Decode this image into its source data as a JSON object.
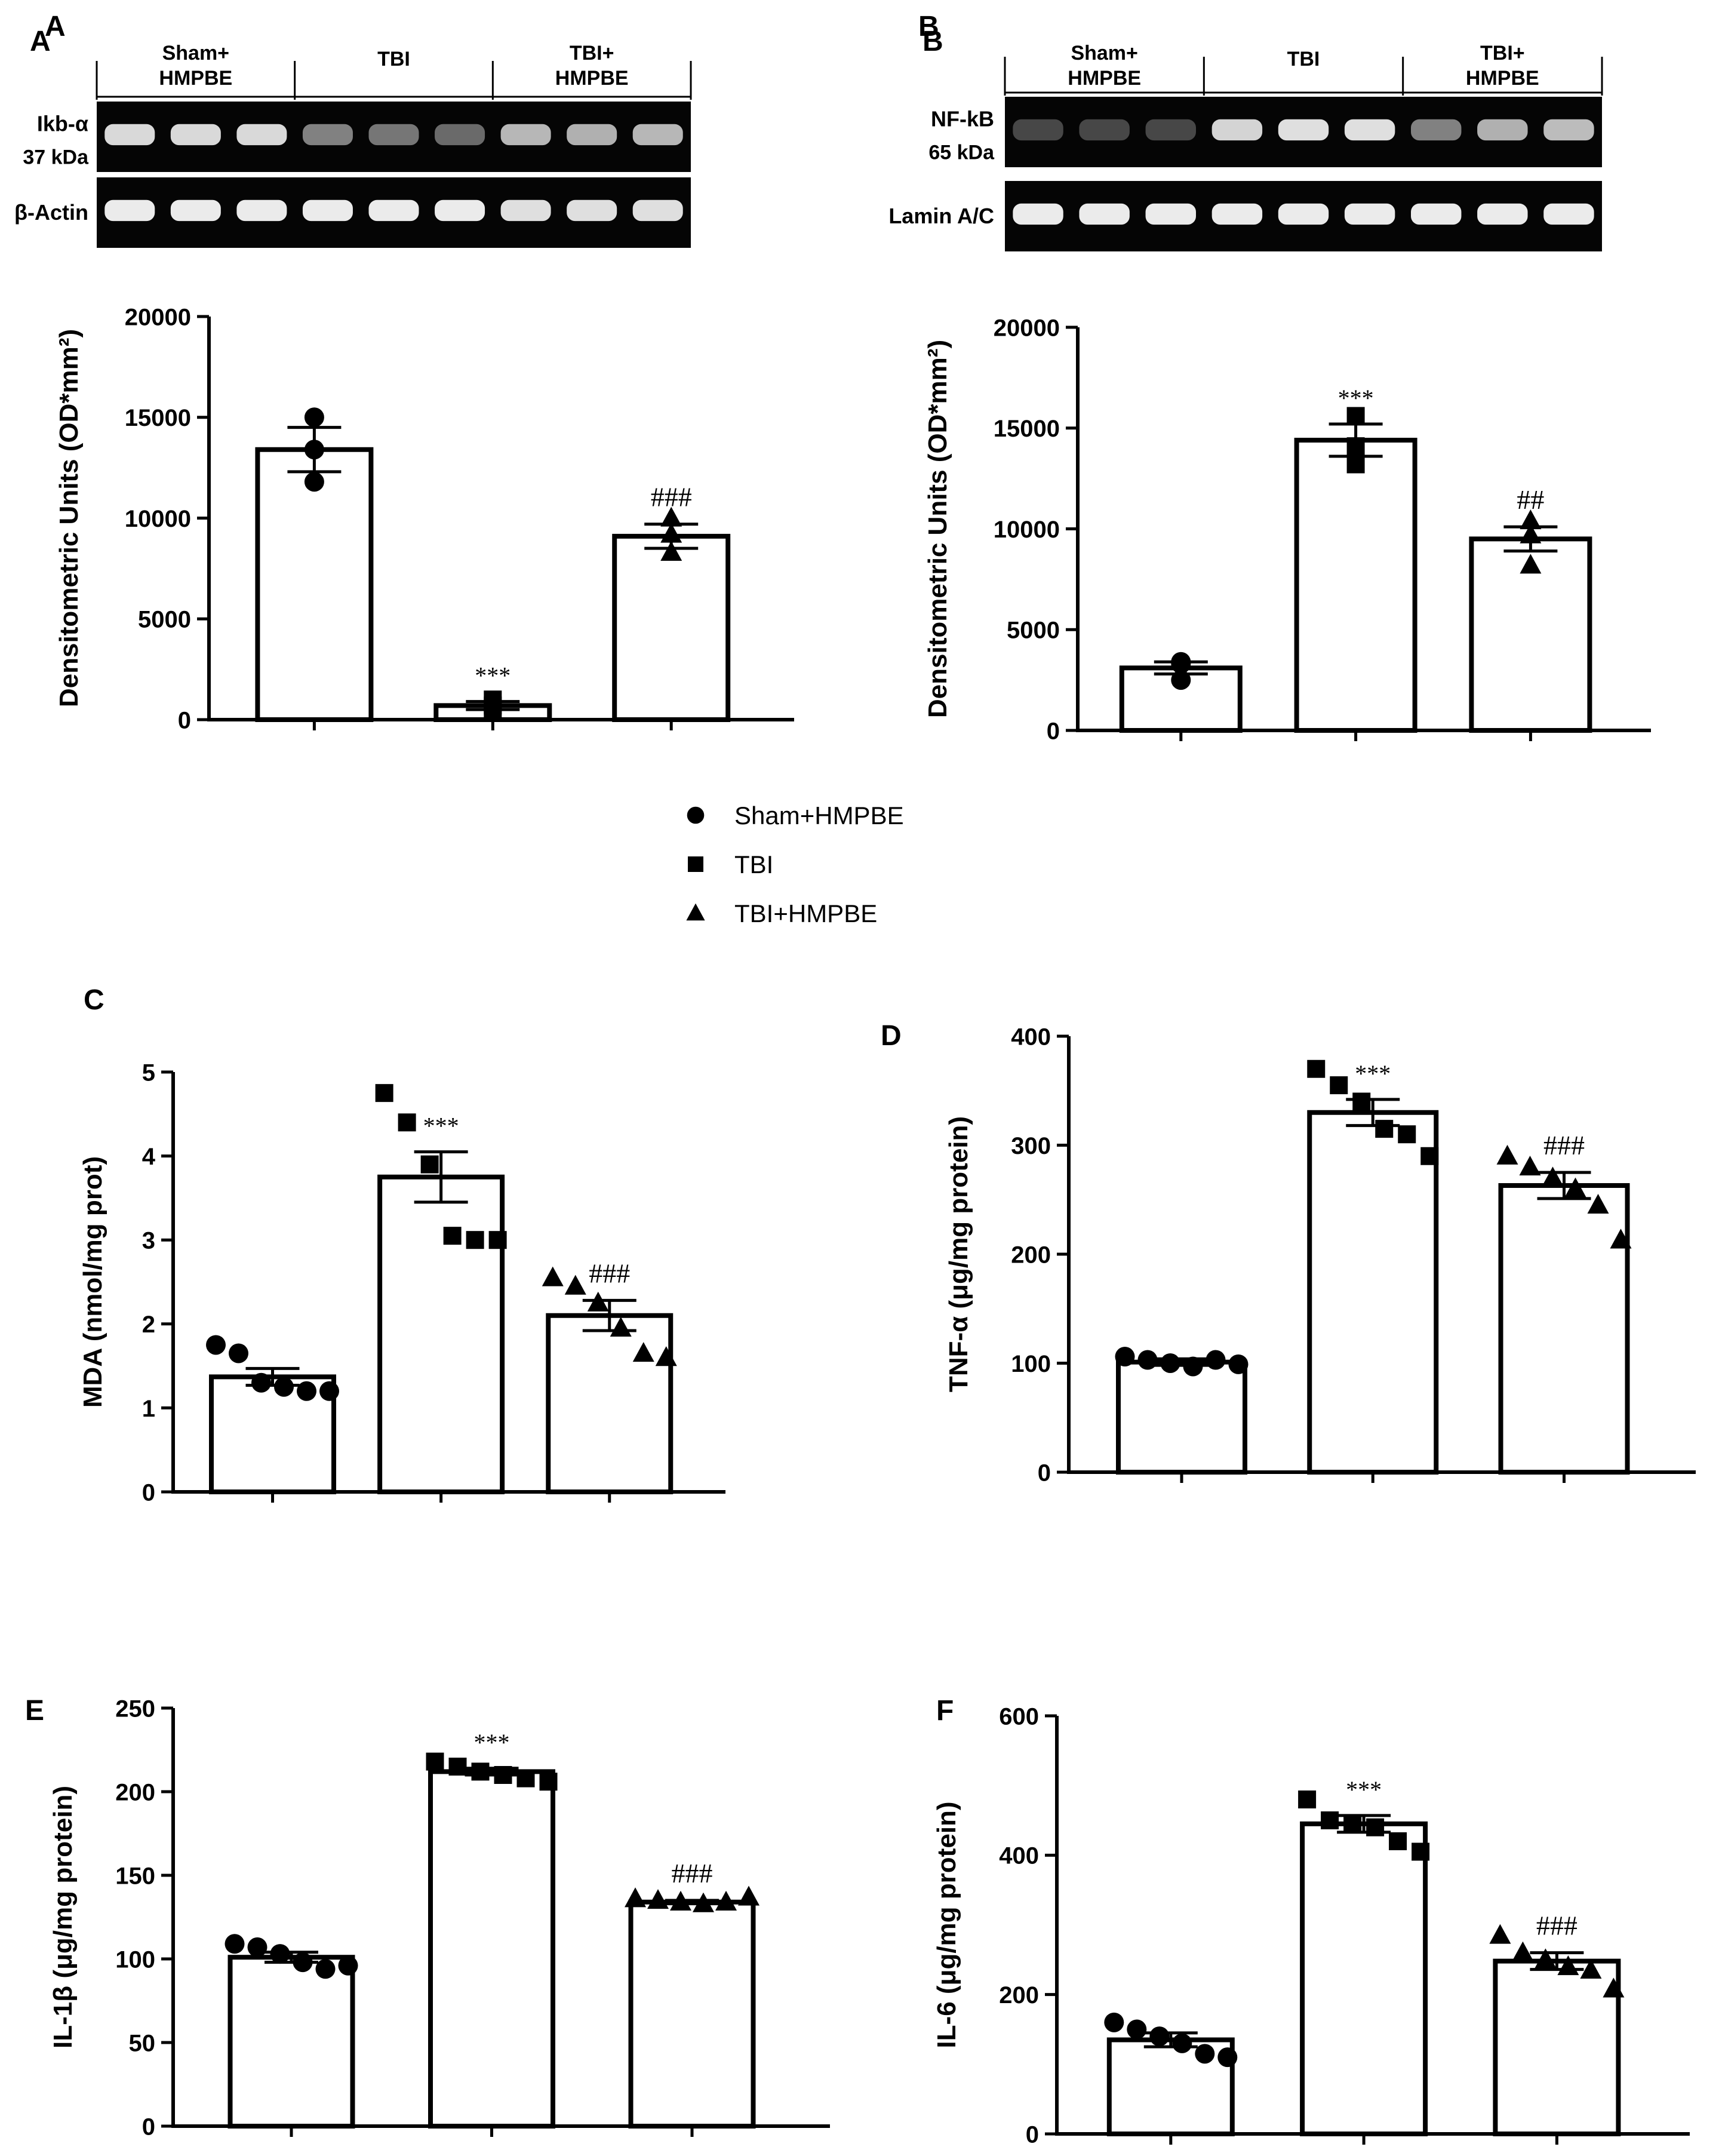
{
  "figure": {
    "blots": [
      {
        "panel": "A",
        "groups": [
          "Sham+\nHMPBE",
          "TBI",
          "TBI+\nHMPBE"
        ],
        "strips": [
          {
            "label": "Ikb-α",
            "sublabel": "37 kDa",
            "intensity": [
              0.92,
              0.92,
              0.92,
              0.55,
              0.5,
              0.45,
              0.78,
              0.75,
              0.78
            ]
          },
          {
            "label": "β-Actin",
            "sublabel": "",
            "intensity": [
              1,
              1,
              1,
              1,
              1,
              1,
              0.95,
              0.95,
              0.95
            ]
          }
        ]
      },
      {
        "panel": "B",
        "groups": [
          "Sham+\nHMPBE",
          "TBI",
          "TBI+\nHMPBE"
        ],
        "strips": [
          {
            "label": "NF-kB",
            "sublabel": "65 kDa",
            "intensity": [
              0.3,
              0.3,
              0.3,
              0.9,
              0.95,
              0.95,
              0.55,
              0.75,
              0.8
            ]
          },
          {
            "label": "Lamin A/C",
            "sublabel": "",
            "intensity": [
              1,
              1,
              1,
              1,
              1,
              1,
              1,
              1,
              1
            ]
          }
        ]
      }
    ],
    "legend": [
      {
        "marker": "circle",
        "label": "Sham+HMPBE"
      },
      {
        "marker": "square",
        "label": "TBI"
      },
      {
        "marker": "triangle",
        "label": "TBI+HMPBE"
      }
    ]
  },
  "chart_data": [
    {
      "panel": "A",
      "type": "bar",
      "ylabel": "Densitometric Units (OD*mm²)",
      "ylim": [
        0,
        20000
      ],
      "yticks": [
        0,
        5000,
        10000,
        15000,
        20000
      ],
      "groups": [
        "Sham+HMPBE",
        "TBI",
        "TBI+HMPBE"
      ],
      "values": [
        13400,
        700,
        9100
      ],
      "sem": [
        1100,
        200,
        600
      ],
      "points": [
        [
          15000,
          13400,
          11800
        ],
        [
          1000,
          700,
          500
        ],
        [
          10000,
          9200,
          8300
        ]
      ],
      "annotations": [
        "",
        "***",
        "###"
      ]
    },
    {
      "panel": "B",
      "type": "bar",
      "ylabel": "Densitometric Units (OD*mm²)",
      "ylim": [
        0,
        20000
      ],
      "yticks": [
        0,
        5000,
        10000,
        15000,
        20000
      ],
      "groups": [
        "Sham+HMPBE",
        "TBI",
        "TBI+HMPBE"
      ],
      "values": [
        3100,
        14400,
        9500
      ],
      "sem": [
        300,
        800,
        600
      ],
      "points": [
        [
          3400,
          3300,
          2500
        ],
        [
          15600,
          14100,
          13200
        ],
        [
          10400,
          9700,
          8200
        ]
      ],
      "annotations": [
        "",
        "***",
        "##"
      ]
    },
    {
      "panel": "C",
      "type": "bar",
      "ylabel": "MDA (nmol/mg prot)",
      "ylim": [
        0,
        5
      ],
      "yticks": [
        0,
        1,
        2,
        3,
        4,
        5
      ],
      "groups": [
        "Sham+HMPBE",
        "TBI",
        "TBI+HMPBE"
      ],
      "values": [
        1.37,
        3.75,
        2.1
      ],
      "sem": [
        0.1,
        0.3,
        0.18
      ],
      "points": [
        [
          1.75,
          1.65,
          1.3,
          1.25,
          1.2,
          1.2
        ],
        [
          4.75,
          4.4,
          3.9,
          3.05,
          3.0,
          3.0
        ],
        [
          2.55,
          2.45,
          2.25,
          1.95,
          1.65,
          1.6
        ]
      ],
      "annotations": [
        "",
        "***",
        "###"
      ]
    },
    {
      "panel": "D",
      "type": "bar",
      "ylabel": "TNF-α (μg/mg protein)",
      "ylim": [
        0,
        400
      ],
      "yticks": [
        0,
        100,
        200,
        300,
        400
      ],
      "groups": [
        "Sham+HMPBE",
        "TBI",
        "TBI+HMPBE"
      ],
      "values": [
        101,
        330,
        263
      ],
      "sem": [
        3,
        12,
        12
      ],
      "points": [
        [
          106,
          103,
          100,
          97,
          103,
          99
        ],
        [
          370,
          355,
          340,
          315,
          310,
          290
        ],
        [
          290,
          280,
          270,
          260,
          245,
          213
        ]
      ],
      "annotations": [
        "",
        "***",
        "###"
      ]
    },
    {
      "panel": "E",
      "type": "bar",
      "ylabel": "IL-1β (μg/mg protein)",
      "ylim": [
        0,
        250
      ],
      "yticks": [
        0,
        50,
        100,
        150,
        200,
        250
      ],
      "groups": [
        "Sham+HMPBE",
        "TBI",
        "TBI+HMPBE"
      ],
      "values": [
        101,
        212,
        134
      ],
      "sem": [
        3,
        2,
        1
      ],
      "points": [
        [
          109,
          107,
          103,
          98,
          94,
          96
        ],
        [
          218,
          215,
          212,
          210,
          208,
          206
        ],
        [
          136,
          135,
          134,
          133,
          134,
          137
        ]
      ],
      "annotations": [
        "",
        "***",
        "###"
      ]
    },
    {
      "panel": "F",
      "type": "bar",
      "ylabel": "IL-6 (μg/mg protein)",
      "ylim": [
        0,
        600
      ],
      "yticks": [
        0,
        200,
        400,
        600
      ],
      "groups": [
        "Sham+HMPBE",
        "TBI",
        "TBI+HMPBE"
      ],
      "values": [
        135,
        445,
        248
      ],
      "sem": [
        10,
        12,
        12
      ],
      "points": [
        [
          160,
          150,
          140,
          130,
          115,
          110
        ],
        [
          480,
          450,
          445,
          440,
          420,
          405
        ],
        [
          285,
          260,
          250,
          240,
          235,
          208
        ]
      ],
      "annotations": [
        "",
        "***",
        "###"
      ]
    }
  ]
}
